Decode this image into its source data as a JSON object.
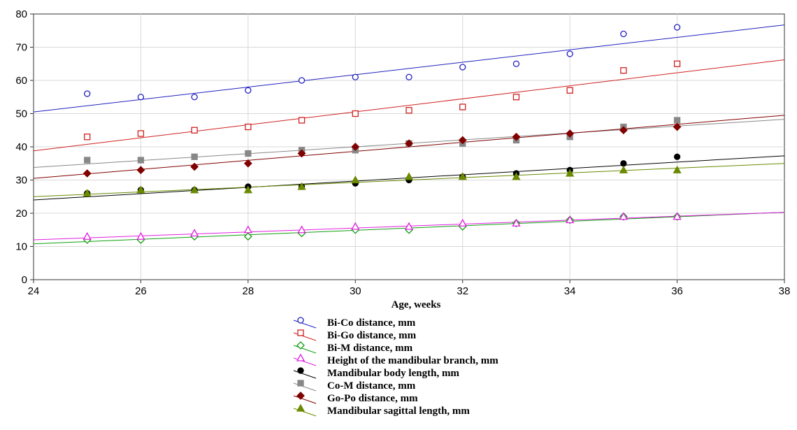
{
  "chart_data": {
    "type": "scatter",
    "title": "",
    "xlabel": "Age, weeks",
    "ylabel": "",
    "xlim": [
      24,
      38
    ],
    "ylim": [
      0,
      80
    ],
    "xticks": [
      "24",
      "26",
      "28",
      "30",
      "32",
      "34",
      "36",
      "38"
    ],
    "yticks": [
      "0",
      "10",
      "20",
      "30",
      "40",
      "50",
      "60",
      "70",
      "80"
    ],
    "grid": true,
    "legend_position": "bottom",
    "x": [
      25,
      26,
      27,
      28,
      29,
      30,
      31,
      32,
      33,
      34,
      35,
      36
    ],
    "series": [
      {
        "name": "Bi-Co distance, mm",
        "marker": "circle-open",
        "color": "#2020c0",
        "values": [
          56,
          55,
          55,
          57,
          60,
          61,
          61,
          64,
          65,
          68,
          74,
          76
        ],
        "fit": [
          50.5,
          76.7
        ]
      },
      {
        "name": "Bi-Go distance, mm",
        "marker": "square-open",
        "color": "#d02020",
        "values": [
          43,
          44,
          45,
          46,
          48,
          50,
          51,
          52,
          55,
          57,
          63,
          65
        ],
        "fit": [
          38.8,
          66.2
        ]
      },
      {
        "name": "Bi-M distance, mm",
        "marker": "diamond-open",
        "color": "#10a010",
        "values": [
          12,
          12,
          13,
          13,
          14,
          15,
          15,
          16,
          17,
          18,
          19,
          19
        ],
        "fit": [
          10.8,
          20.3
        ]
      },
      {
        "name": "Height of the mandibular branch, mm",
        "marker": "triangle-open",
        "color": "#e020e0",
        "values": [
          13,
          13,
          14,
          15,
          15,
          16,
          16,
          17,
          17,
          18,
          19,
          19
        ],
        "fit": [
          12.0,
          20.3
        ]
      },
      {
        "name": "Mandibular body length, mm",
        "marker": "circle-filled",
        "color": "#000000",
        "values": [
          26,
          27,
          27,
          28,
          28,
          29,
          30,
          31,
          32,
          33,
          35,
          37
        ],
        "fit": [
          24.0,
          37.3
        ]
      },
      {
        "name": "Co-M distance, mm",
        "marker": "square-filled",
        "color": "#888888",
        "values": [
          36,
          36,
          37,
          38,
          39,
          39,
          41,
          41,
          42,
          43,
          46,
          48
        ],
        "fit": [
          33.8,
          48.3
        ]
      },
      {
        "name": "Go-Po distance, mm",
        "marker": "diamond-filled",
        "color": "#800000",
        "values": [
          32,
          33,
          34,
          35,
          38,
          40,
          41,
          42,
          43,
          44,
          45,
          46
        ],
        "fit": [
          30.5,
          49.5
        ]
      },
      {
        "name": "Mandibular sagittal length, mm",
        "marker": "triangle-filled",
        "color": "#6a8a00",
        "values": [
          26,
          27,
          27,
          27,
          28,
          30,
          31,
          31,
          31,
          32,
          33,
          33
        ],
        "fit": [
          25.0,
          35.0
        ]
      }
    ]
  }
}
